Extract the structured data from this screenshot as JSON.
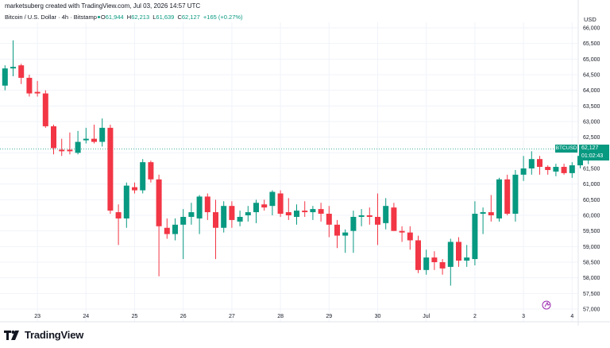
{
  "header": {
    "credit": "marketsuberg created with TradingView.com, Jul 03, 2026 14:57 UTC",
    "symbol": "Bitcoin / U.S. Dollar · 4h · Bitstamp",
    "open_label": "O",
    "open_value": "61,944",
    "high_label": "H",
    "high_value": "62,213",
    "low_label": "L",
    "low_value": "61,639",
    "close_label": "C",
    "close_value": "62,127",
    "change": "+165 (+0.27%)"
  },
  "currency": "USD",
  "price_tag": {
    "ticker": "BTCUSD",
    "price": "62,127",
    "countdown": "01:02:43"
  },
  "logo_text": "TradingView",
  "colors": {
    "up": "#089981",
    "down": "#f23645",
    "grid": "#f0f3fa",
    "axis_text": "#131722",
    "price_line": "#089981"
  },
  "chart_data": {
    "type": "candlestick",
    "ylim": [
      56900,
      66100
    ],
    "y_ticks": [
      57000,
      57500,
      58000,
      58500,
      59000,
      59500,
      60000,
      60500,
      61000,
      61500,
      62000,
      62500,
      63000,
      63500,
      64000,
      64500,
      65000,
      65500,
      66000
    ],
    "y_tick_labels": [
      "57,000",
      "57,500",
      "58,000",
      "58,500",
      "59,000",
      "59,500",
      "60,000",
      "60,500",
      "61,000",
      "61,500",
      "62,000",
      "62,500",
      "63,000",
      "63,500",
      "64,000",
      "64,500",
      "65,000",
      "65,500",
      "66,000"
    ],
    "x_ticks": [
      {
        "label": "23",
        "index": 4
      },
      {
        "label": "24",
        "index": 10
      },
      {
        "label": "25",
        "index": 16
      },
      {
        "label": "26",
        "index": 22
      },
      {
        "label": "27",
        "index": 28
      },
      {
        "label": "28",
        "index": 34
      },
      {
        "label": "29",
        "index": 40
      },
      {
        "label": "30",
        "index": 46
      },
      {
        "label": "Jul",
        "index": 52
      },
      {
        "label": "2",
        "index": 58
      },
      {
        "label": "3",
        "index": 64
      },
      {
        "label": "4",
        "index": 70
      }
    ],
    "last_price": 62127,
    "candles": [
      {
        "o": 64150,
        "h": 64800,
        "l": 64000,
        "c": 64700
      },
      {
        "o": 64700,
        "h": 65600,
        "l": 64450,
        "c": 64750
      },
      {
        "o": 64800,
        "h": 64850,
        "l": 64200,
        "c": 64400
      },
      {
        "o": 64400,
        "h": 64500,
        "l": 63800,
        "c": 63900
      },
      {
        "o": 63950,
        "h": 64300,
        "l": 63800,
        "c": 63900
      },
      {
        "o": 63900,
        "h": 64000,
        "l": 62800,
        "c": 62850
      },
      {
        "o": 62850,
        "h": 62900,
        "l": 61950,
        "c": 62150
      },
      {
        "o": 62100,
        "h": 62450,
        "l": 61900,
        "c": 62050
      },
      {
        "o": 62100,
        "h": 62650,
        "l": 61950,
        "c": 62050
      },
      {
        "o": 62000,
        "h": 62700,
        "l": 61950,
        "c": 62350
      },
      {
        "o": 62400,
        "h": 62800,
        "l": 62300,
        "c": 62450
      },
      {
        "o": 62450,
        "h": 62900,
        "l": 62300,
        "c": 62350
      },
      {
        "o": 62350,
        "h": 63100,
        "l": 62200,
        "c": 62800
      },
      {
        "o": 62800,
        "h": 62900,
        "l": 60050,
        "c": 60150
      },
      {
        "o": 60100,
        "h": 60350,
        "l": 59050,
        "c": 59900
      },
      {
        "o": 59900,
        "h": 61050,
        "l": 59600,
        "c": 60950
      },
      {
        "o": 60900,
        "h": 61050,
        "l": 60700,
        "c": 60800
      },
      {
        "o": 60800,
        "h": 61800,
        "l": 60700,
        "c": 61700
      },
      {
        "o": 61700,
        "h": 61750,
        "l": 61050,
        "c": 61150
      },
      {
        "o": 61150,
        "h": 61300,
        "l": 58050,
        "c": 59650
      },
      {
        "o": 59600,
        "h": 59900,
        "l": 59250,
        "c": 59400
      },
      {
        "o": 59400,
        "h": 59900,
        "l": 59200,
        "c": 59700
      },
      {
        "o": 59700,
        "h": 60200,
        "l": 58600,
        "c": 59950
      },
      {
        "o": 59950,
        "h": 60400,
        "l": 59700,
        "c": 60100
      },
      {
        "o": 59900,
        "h": 60650,
        "l": 59400,
        "c": 60600
      },
      {
        "o": 60600,
        "h": 60700,
        "l": 59850,
        "c": 60100
      },
      {
        "o": 60100,
        "h": 60500,
        "l": 58600,
        "c": 59600
      },
      {
        "o": 59600,
        "h": 60450,
        "l": 59450,
        "c": 60300
      },
      {
        "o": 60300,
        "h": 60450,
        "l": 59600,
        "c": 59850
      },
      {
        "o": 59800,
        "h": 60150,
        "l": 59650,
        "c": 59950
      },
      {
        "o": 60000,
        "h": 60300,
        "l": 59800,
        "c": 60100
      },
      {
        "o": 60100,
        "h": 60500,
        "l": 59750,
        "c": 60400
      },
      {
        "o": 60350,
        "h": 60500,
        "l": 60150,
        "c": 60250
      },
      {
        "o": 60300,
        "h": 60800,
        "l": 60000,
        "c": 60750
      },
      {
        "o": 60700,
        "h": 60800,
        "l": 59950,
        "c": 60050
      },
      {
        "o": 60100,
        "h": 60550,
        "l": 59850,
        "c": 60000
      },
      {
        "o": 59950,
        "h": 60350,
        "l": 59700,
        "c": 60150
      },
      {
        "o": 60150,
        "h": 60450,
        "l": 59950,
        "c": 60100
      },
      {
        "o": 60100,
        "h": 60300,
        "l": 59850,
        "c": 60200
      },
      {
        "o": 60200,
        "h": 60400,
        "l": 59800,
        "c": 60050
      },
      {
        "o": 60050,
        "h": 60300,
        "l": 59300,
        "c": 59700
      },
      {
        "o": 59700,
        "h": 59850,
        "l": 58950,
        "c": 59350
      },
      {
        "o": 59350,
        "h": 59550,
        "l": 58800,
        "c": 59450
      },
      {
        "o": 59500,
        "h": 60150,
        "l": 58800,
        "c": 59950
      },
      {
        "o": 59950,
        "h": 60200,
        "l": 59650,
        "c": 60000
      },
      {
        "o": 60000,
        "h": 60250,
        "l": 59700,
        "c": 59950
      },
      {
        "o": 59950,
        "h": 60700,
        "l": 59050,
        "c": 59700
      },
      {
        "o": 59750,
        "h": 60550,
        "l": 59550,
        "c": 60300
      },
      {
        "o": 60250,
        "h": 60400,
        "l": 59500,
        "c": 59500
      },
      {
        "o": 59500,
        "h": 59650,
        "l": 59150,
        "c": 59450
      },
      {
        "o": 59450,
        "h": 59650,
        "l": 58900,
        "c": 59200
      },
      {
        "o": 59200,
        "h": 59350,
        "l": 58150,
        "c": 58250
      },
      {
        "o": 58250,
        "h": 58900,
        "l": 58100,
        "c": 58650
      },
      {
        "o": 58650,
        "h": 58850,
        "l": 58250,
        "c": 58500
      },
      {
        "o": 58500,
        "h": 58600,
        "l": 58100,
        "c": 58300
      },
      {
        "o": 58350,
        "h": 59250,
        "l": 57750,
        "c": 59150
      },
      {
        "o": 59150,
        "h": 59300,
        "l": 58350,
        "c": 58550
      },
      {
        "o": 58550,
        "h": 59050,
        "l": 58350,
        "c": 58650
      },
      {
        "o": 58600,
        "h": 60450,
        "l": 58400,
        "c": 60050
      },
      {
        "o": 60050,
        "h": 60250,
        "l": 59400,
        "c": 60100
      },
      {
        "o": 60100,
        "h": 60650,
        "l": 59800,
        "c": 60000
      },
      {
        "o": 59900,
        "h": 61200,
        "l": 59800,
        "c": 61150
      },
      {
        "o": 61150,
        "h": 61300,
        "l": 60000,
        "c": 60050
      },
      {
        "o": 60050,
        "h": 61450,
        "l": 59800,
        "c": 61300
      },
      {
        "o": 61300,
        "h": 61900,
        "l": 61100,
        "c": 61500
      },
      {
        "o": 61500,
        "h": 62050,
        "l": 61300,
        "c": 61800
      },
      {
        "o": 61800,
        "h": 61900,
        "l": 61300,
        "c": 61550
      },
      {
        "o": 61550,
        "h": 61600,
        "l": 61300,
        "c": 61450
      },
      {
        "o": 61400,
        "h": 61650,
        "l": 61250,
        "c": 61550
      },
      {
        "o": 61550,
        "h": 61650,
        "l": 61300,
        "c": 61350
      },
      {
        "o": 61350,
        "h": 61700,
        "l": 61200,
        "c": 61600
      },
      {
        "o": 61600,
        "h": 62000,
        "l": 61500,
        "c": 61900
      },
      {
        "o": 61944,
        "h": 62213,
        "l": 61639,
        "c": 62127
      }
    ]
  }
}
